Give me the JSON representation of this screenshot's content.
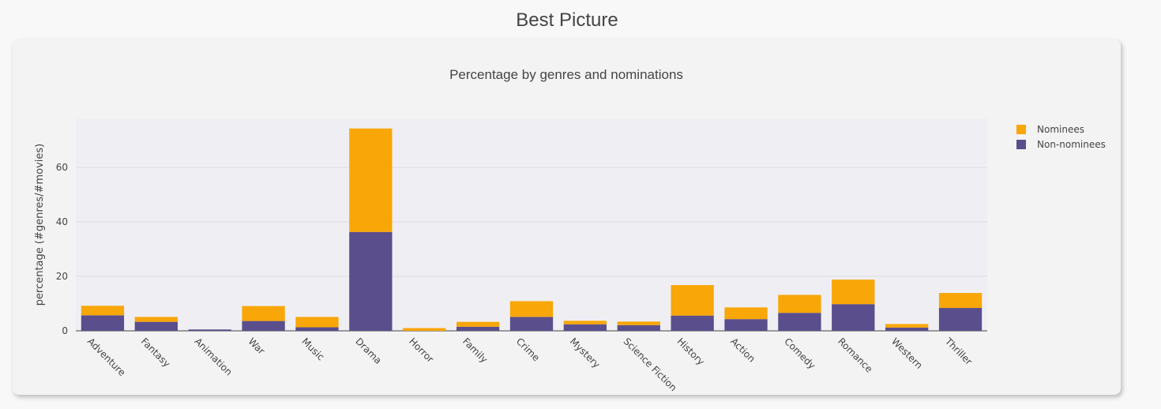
{
  "page": {
    "title": "Best Picture"
  },
  "colors": {
    "nominees": "#f8a608",
    "non_nominees": "#5a4e8c",
    "plot_bg": "#efeff3",
    "grid": "#dcdce2"
  },
  "chart_data": {
    "type": "bar",
    "stacked": true,
    "title": "Percentage by genres and nominations",
    "xlabel": "",
    "ylabel": "percentage (#genres/#movies)",
    "ylim": [
      0,
      78
    ],
    "yticks": [
      0,
      20,
      40,
      60
    ],
    "grid": true,
    "legend_position": "top-right",
    "categories": [
      "Adventure",
      "Fantasy",
      "Animation",
      "War",
      "Music",
      "Drama",
      "Horror",
      "Family",
      "Crime",
      "Mystery",
      "Science Fiction",
      "History",
      "Action",
      "Comedy",
      "Romance",
      "Western",
      "Thriller"
    ],
    "series": [
      {
        "name": "Nominees",
        "color": "#f8a608",
        "values": [
          3.5,
          1.8,
          0.0,
          5.5,
          3.8,
          38.0,
          1.0,
          1.8,
          5.8,
          1.3,
          1.3,
          11.2,
          4.3,
          6.6,
          9.0,
          1.3,
          5.5
        ]
      },
      {
        "name": "Non-nominees",
        "color": "#5a4e8c",
        "values": [
          5.7,
          3.3,
          0.5,
          3.6,
          1.3,
          36.3,
          0.0,
          1.5,
          5.1,
          2.4,
          2.1,
          5.6,
          4.3,
          6.6,
          9.8,
          1.2,
          8.4
        ]
      }
    ]
  }
}
